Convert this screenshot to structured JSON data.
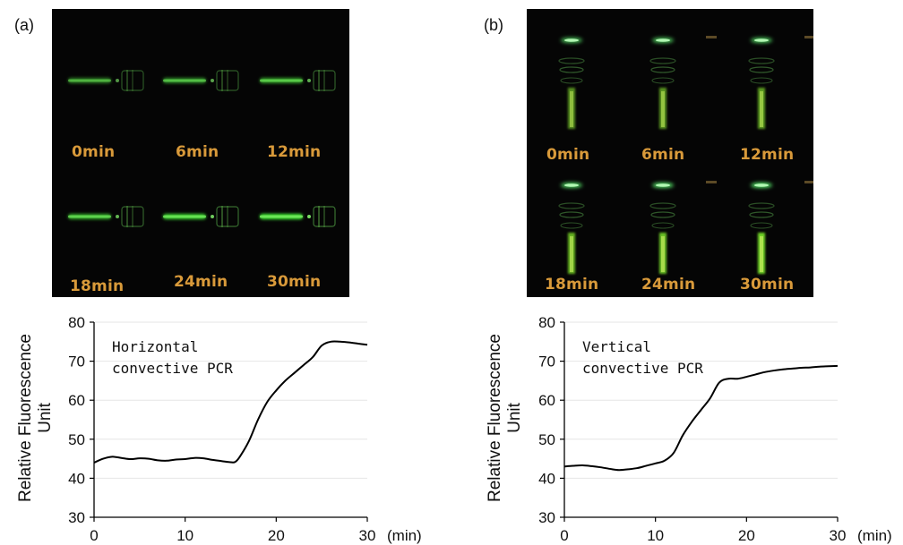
{
  "panels": [
    {
      "label": "(a)",
      "image_labels": [
        "0min",
        "6min",
        "12min",
        "18min",
        "24min",
        "30min"
      ],
      "orientation": "horizontal",
      "brightness": [
        0.35,
        0.45,
        0.55,
        0.65,
        0.85,
        1.0
      ]
    },
    {
      "label": "(b)",
      "image_labels": [
        "0min",
        "6min",
        "12min",
        "18min",
        "24min",
        "30min"
      ],
      "orientation": "vertical",
      "brightness": [
        0.5,
        0.55,
        0.6,
        0.75,
        0.85,
        0.95
      ]
    }
  ],
  "chart_data": [
    {
      "type": "line",
      "annotation": [
        "Horizontal",
        "convective PCR"
      ],
      "ylabel": [
        "Relative Fluorescence",
        "Unit"
      ],
      "xunit": "(min)",
      "xlim": [
        0,
        30
      ],
      "ylim": [
        30,
        80
      ],
      "xticks": [
        0,
        10,
        20,
        30
      ],
      "yticks": [
        30,
        40,
        50,
        60,
        70,
        80
      ],
      "grid": true,
      "x": [
        0,
        1,
        2,
        3,
        4,
        5,
        6,
        7,
        8,
        9,
        10,
        11,
        12,
        13,
        14,
        15,
        15.5,
        16,
        17,
        18,
        19,
        20,
        21,
        22,
        23,
        24,
        25,
        26,
        27,
        28,
        29,
        30
      ],
      "y": [
        44,
        45,
        45.5,
        45.2,
        44.9,
        45.1,
        45.0,
        44.6,
        44.5,
        44.8,
        44.9,
        45.2,
        45.1,
        44.7,
        44.4,
        44.1,
        44.2,
        45.5,
        49.5,
        55,
        59.5,
        62.5,
        65,
        67,
        69,
        71,
        74,
        75,
        75,
        74.8,
        74.5,
        74.2
      ]
    },
    {
      "type": "line",
      "annotation": [
        "Vertical",
        "convective PCR"
      ],
      "ylabel": [
        "Relative Fluorescence",
        "Unit"
      ],
      "xunit": "(min)",
      "xlim": [
        0,
        30
      ],
      "ylim": [
        30,
        80
      ],
      "xticks": [
        0,
        10,
        20,
        30
      ],
      "yticks": [
        30,
        40,
        50,
        60,
        70,
        80
      ],
      "grid": true,
      "x": [
        0,
        1,
        2,
        3,
        4,
        5,
        6,
        7,
        8,
        9,
        10,
        11,
        12,
        13,
        14,
        15,
        16,
        17,
        18,
        19,
        20,
        21,
        22,
        23,
        24,
        25,
        26,
        27,
        28,
        29,
        30
      ],
      "y": [
        43,
        43.2,
        43.3,
        43.1,
        42.8,
        42.4,
        42.1,
        42.3,
        42.6,
        43.2,
        43.8,
        44.5,
        46.5,
        51,
        54.5,
        57.5,
        60.5,
        64.5,
        65.5,
        65.5,
        66,
        66.6,
        67.2,
        67.6,
        67.9,
        68.1,
        68.3,
        68.4,
        68.6,
        68.7,
        68.8
      ]
    }
  ]
}
